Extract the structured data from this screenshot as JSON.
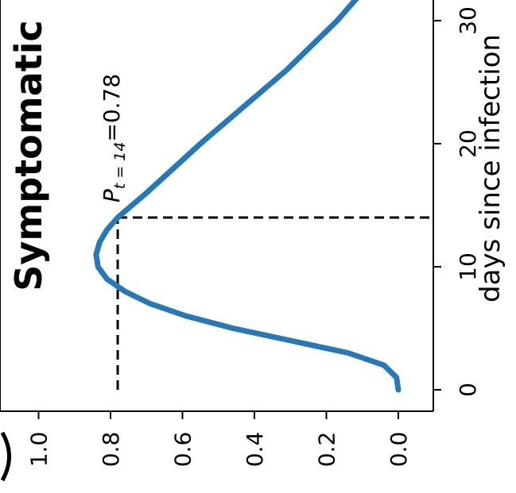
{
  "chart_data": {
    "type": "line",
    "title": "Symptomatic",
    "xlabel": "days since infection",
    "ylabel": "",
    "xlim": [
      -1.5,
      33
    ],
    "ylim": [
      -0.1,
      1.05
    ],
    "x_ticks": [
      "0",
      "10",
      "20",
      "30"
    ],
    "y_ticks": [
      "0.0",
      "0.2",
      "0.4",
      "0.6",
      "0.8",
      "1.0"
    ],
    "grid": false,
    "orientation": "rotated 90 degrees clockwise",
    "series": [
      {
        "color": "#2878b5",
        "x": [
          0,
          1,
          2,
          3,
          4,
          5,
          6,
          7,
          8,
          9,
          10,
          11,
          12,
          13,
          14,
          15,
          16,
          18,
          20,
          22,
          24,
          26,
          28,
          30,
          32
        ],
        "y": [
          0.0,
          0.005,
          0.04,
          0.14,
          0.3,
          0.46,
          0.59,
          0.69,
          0.76,
          0.81,
          0.835,
          0.84,
          0.83,
          0.81,
          0.78,
          0.74,
          0.7,
          0.625,
          0.55,
          0.47,
          0.39,
          0.31,
          0.24,
          0.17,
          0.11
        ]
      }
    ],
    "reference_lines": {
      "x": 14,
      "y": 0.78,
      "style": "dashed",
      "color": "#000000"
    },
    "annotation": {
      "main": "P",
      "subscript": "t = 14",
      "value_text": "=0.78",
      "x": 14,
      "y": 0.78
    }
  }
}
